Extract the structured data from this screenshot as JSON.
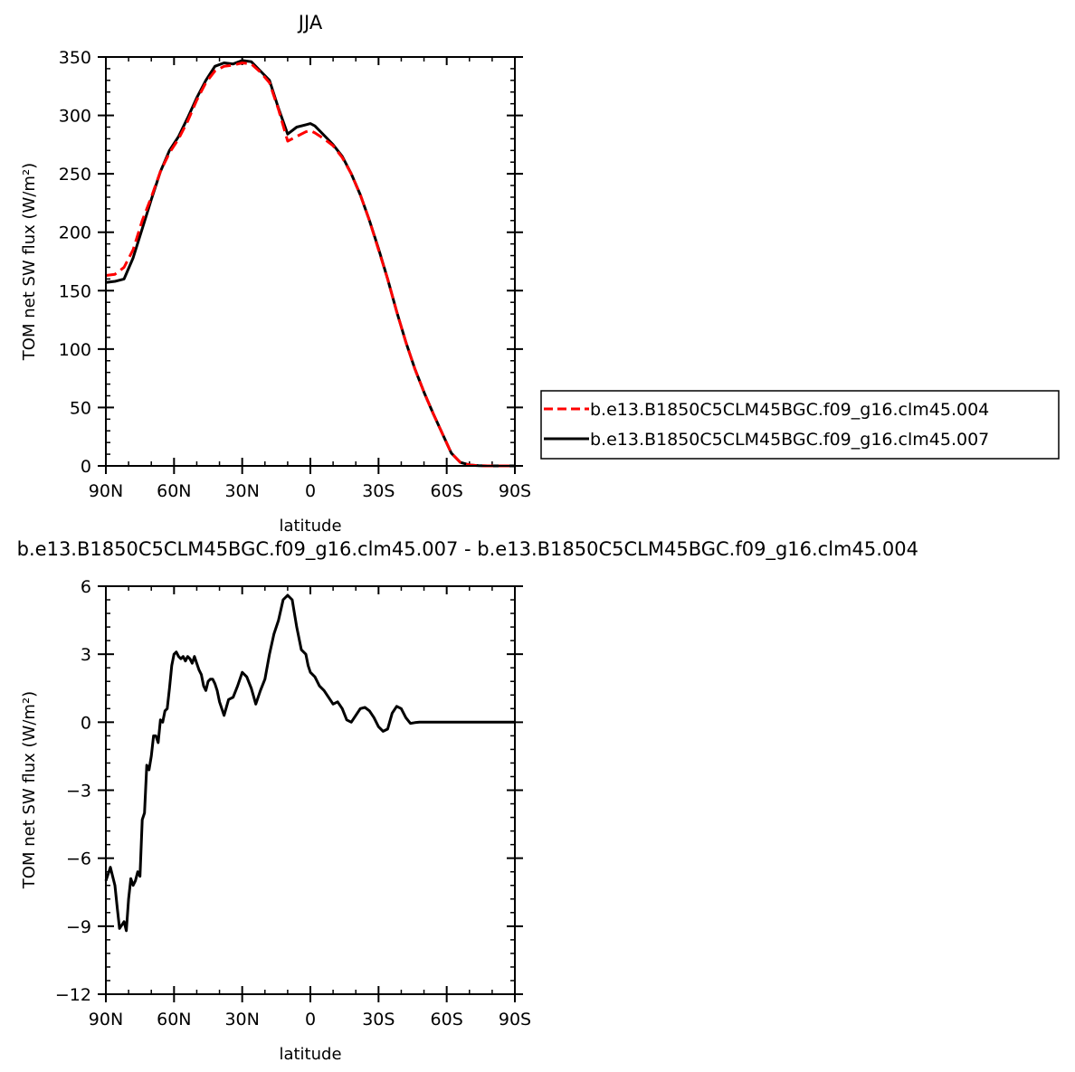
{
  "chart_data": [
    {
      "type": "line",
      "title": "JJA",
      "xlabel": "latitude",
      "ylabel": "TOM net SW flux (W/m²)",
      "x_tick_labels": [
        "90N",
        "60N",
        "30N",
        "0",
        "30S",
        "60S",
        "90S"
      ],
      "x_tick_values": [
        90,
        60,
        30,
        0,
        -30,
        -60,
        -90
      ],
      "xlim": [
        90,
        -90
      ],
      "y_tick_labels": [
        "0",
        "50",
        "100",
        "150",
        "200",
        "250",
        "300",
        "350"
      ],
      "ylim": [
        0,
        350
      ],
      "legend_position": "right",
      "x": [
        90,
        86,
        82,
        78,
        74,
        70,
        66,
        62,
        58,
        54,
        50,
        46,
        42,
        38,
        34,
        30,
        26,
        22,
        18,
        14,
        10,
        6,
        2,
        0,
        -2,
        -6,
        -10,
        -14,
        -18,
        -22,
        -26,
        -30,
        -34,
        -38,
        -42,
        -46,
        -50,
        -54,
        -58,
        -62,
        -66,
        -70,
        -74,
        -78,
        -82,
        -86,
        -90
      ],
      "series": [
        {
          "name": "b.e13.B1850C5CLM45BGC.f09_g16.clm45.004",
          "color": "#ff0000",
          "dash": "dashed",
          "values": [
            163,
            164,
            170,
            185,
            210,
            230,
            252,
            268,
            280,
            295,
            313,
            328,
            338,
            342,
            343,
            345,
            344,
            337,
            328,
            305,
            278,
            282,
            286,
            287,
            285,
            280,
            274,
            264,
            250,
            232,
            210,
            185,
            160,
            132,
            106,
            83,
            63,
            45,
            28,
            11,
            3,
            0.8,
            0.2,
            0,
            0,
            0,
            0
          ]
        },
        {
          "name": "b.e13.B1850C5CLM45BGC.f09_g16.clm45.007",
          "color": "#000000",
          "dash": "solid",
          "values": [
            157,
            158,
            160,
            178,
            203,
            228,
            252,
            270,
            282,
            298,
            315,
            330,
            342,
            345,
            344,
            347,
            346,
            338,
            330,
            306,
            284,
            290,
            292,
            293,
            291,
            283,
            275,
            265,
            250,
            232,
            210,
            186,
            160,
            132,
            106,
            83,
            63,
            45,
            28,
            11,
            3,
            0.8,
            0.2,
            0,
            0,
            0,
            0
          ]
        }
      ]
    },
    {
      "type": "line",
      "title": "b.e13.B1850C5CLM45BGC.f09_g16.clm45.007 - b.e13.B1850C5CLM45BGC.f09_g16.clm45.004",
      "xlabel": "latitude",
      "ylabel": "TOM net SW flux (W/m²)",
      "x_tick_labels": [
        "90N",
        "60N",
        "30N",
        "0",
        "30S",
        "60S",
        "90S"
      ],
      "x_tick_values": [
        90,
        60,
        30,
        0,
        -30,
        -60,
        -90
      ],
      "xlim": [
        90,
        -90
      ],
      "y_tick_labels": [
        "−12",
        "−9",
        "−6",
        "−3",
        "0",
        "3",
        "6"
      ],
      "ylim": [
        -12,
        6
      ],
      "x": [
        90,
        88,
        86,
        85,
        84,
        82,
        81,
        80,
        79,
        78,
        77,
        76,
        75,
        74,
        73,
        72,
        71,
        70,
        69,
        68,
        67,
        66,
        65,
        64,
        63,
        62,
        61,
        60,
        59,
        58,
        57,
        56,
        55,
        54,
        53,
        52,
        51,
        50,
        49,
        48,
        47,
        46,
        45,
        44,
        43,
        42,
        41,
        40,
        38,
        36,
        34,
        32,
        30,
        28,
        26,
        24,
        22,
        20,
        18,
        16,
        14,
        12,
        10,
        8,
        6,
        4,
        2,
        1,
        0,
        -2,
        -4,
        -6,
        -8,
        -10,
        -12,
        -14,
        -16,
        -18,
        -20,
        -22,
        -24,
        -26,
        -28,
        -30,
        -32,
        -34,
        -36,
        -38,
        -40,
        -42,
        -44,
        -46,
        -48,
        -50,
        -52,
        -54,
        -56,
        -58,
        -60,
        -62,
        -64,
        -66,
        -68,
        -70,
        -72,
        -76,
        -80,
        -84,
        -90
      ],
      "series": [
        {
          "color": "#000000",
          "dash": "solid",
          "values": [
            -7.0,
            -6.4,
            -7.2,
            -8.2,
            -9.1,
            -8.8,
            -9.2,
            -7.8,
            -6.9,
            -7.2,
            -7.0,
            -6.6,
            -6.8,
            -4.3,
            -4.0,
            -1.9,
            -2.1,
            -1.5,
            -0.6,
            -0.6,
            -0.9,
            0.1,
            0.0,
            0.5,
            0.6,
            1.5,
            2.5,
            3.0,
            3.1,
            2.9,
            2.8,
            2.9,
            2.7,
            2.9,
            2.8,
            2.6,
            2.9,
            2.6,
            2.3,
            2.1,
            1.6,
            1.4,
            1.8,
            1.9,
            1.9,
            1.7,
            1.4,
            0.9,
            0.3,
            1.0,
            1.1,
            1.6,
            2.2,
            2.0,
            1.5,
            0.8,
            1.4,
            1.9,
            3.0,
            3.9,
            4.5,
            5.4,
            5.6,
            5.4,
            4.2,
            3.2,
            3.0,
            2.5,
            2.2,
            2.0,
            1.6,
            1.4,
            1.1,
            0.8,
            0.9,
            0.6,
            0.1,
            0.0,
            0.3,
            0.6,
            0.65,
            0.5,
            0.2,
            -0.2,
            -0.4,
            -0.3,
            0.4,
            0.7,
            0.6,
            0.2,
            -0.05,
            -0.02,
            0.0,
            0.0,
            0.0,
            0.0,
            0.0,
            0.0,
            0.0,
            0.0,
            0.0,
            0.0,
            0.0,
            0.0,
            0.0,
            0.0,
            0.0,
            0.0,
            0.0
          ]
        }
      ]
    }
  ]
}
